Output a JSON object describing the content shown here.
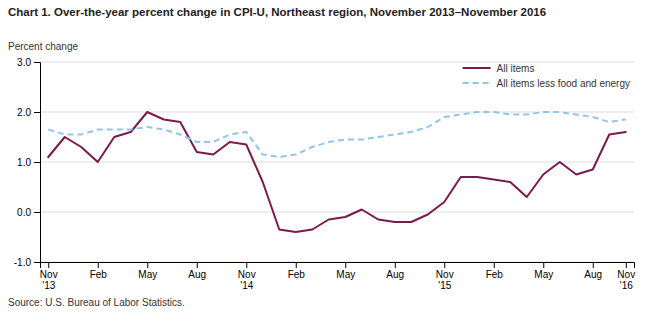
{
  "chart_data": {
    "type": "line",
    "title": "Chart 1. Over-the-year percent change in CPI-U, Northeast region, November 2013–November 2016",
    "y_label": "Percent change",
    "source": "Source: U.S. Bureau of Labor Statistics.",
    "categories": [
      "Nov\n'13",
      null,
      null,
      "Feb",
      null,
      null,
      "May",
      null,
      null,
      "Aug",
      null,
      null,
      "Nov\n'14",
      null,
      null,
      "Feb",
      null,
      null,
      "May",
      null,
      null,
      "Aug",
      null,
      null,
      "Nov\n'15",
      null,
      null,
      "Feb",
      null,
      null,
      "May",
      null,
      null,
      "Aug",
      null,
      "Nov\n'16"
    ],
    "series": [
      {
        "name": "All items",
        "color": "#7B1A4B",
        "line_style": "solid",
        "values": [
          1.1,
          1.5,
          1.3,
          1.0,
          1.5,
          1.6,
          2.0,
          1.85,
          1.8,
          1.2,
          1.15,
          1.4,
          1.35,
          0.6,
          -0.35,
          -0.4,
          -0.35,
          -0.15,
          -0.1,
          0.05,
          -0.15,
          -0.2,
          -0.2,
          -0.05,
          0.2,
          0.7,
          0.7,
          0.65,
          0.6,
          0.3,
          0.75,
          1.0,
          0.75,
          0.85,
          1.55,
          1.6
        ]
      },
      {
        "name": "All items less food and energy",
        "color": "#92C5E8",
        "line_style": "dashed",
        "values": [
          1.65,
          1.55,
          1.55,
          1.65,
          1.65,
          1.65,
          1.7,
          1.65,
          1.55,
          1.4,
          1.4,
          1.55,
          1.6,
          1.15,
          1.1,
          1.15,
          1.3,
          1.4,
          1.45,
          1.45,
          1.5,
          1.55,
          1.6,
          1.7,
          1.9,
          1.95,
          2.0,
          2.0,
          1.95,
          1.95,
          2.0,
          2.0,
          1.95,
          1.9,
          1.8,
          1.85
        ]
      }
    ],
    "ylim": [
      -1.0,
      3.0
    ],
    "yticks": [
      {
        "value": -1.0,
        "label": "-1.0"
      },
      {
        "value": 0.0,
        "label": "0.0"
      },
      {
        "value": 1.0,
        "label": "1.0"
      },
      {
        "value": 2.0,
        "label": "2.0"
      },
      {
        "value": 3.0,
        "label": "3.0"
      }
    ],
    "grid": true,
    "legend": "upper right"
  }
}
